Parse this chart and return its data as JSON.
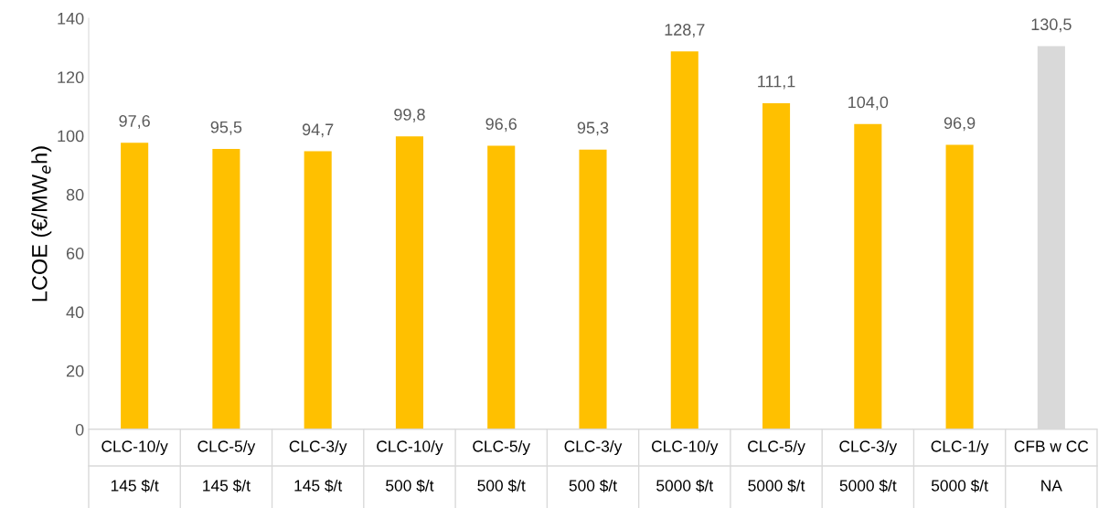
{
  "chart_data": {
    "type": "bar",
    "ylabel": "LCOE (€/MW$_{e}$h)",
    "categories": [
      "CLC-10/y\n145 $/t",
      "CLC-5/y\n145 $/t",
      "CLC-3/y\n145 $/t",
      "CLC-10/y\n500 $/t",
      "CLC-5/y\n500 $/t",
      "CLC-3/y\n500 $/t",
      "CLC-10/y\n5000 $/t",
      "CLC-5/y\n5000 $/t",
      "CLC-3/y\n5000 $/t",
      "CLC-1/y\n5000 $/t",
      "CFB w CC\nNA"
    ],
    "values": [
      97.6,
      95.5,
      94.7,
      99.8,
      96.6,
      95.3,
      128.7,
      111.1,
      104.0,
      96.9,
      130.5
    ],
    "colors": [
      "#ffc000",
      "#ffc000",
      "#ffc000",
      "#ffc000",
      "#ffc000",
      "#ffc000",
      "#ffc000",
      "#ffc000",
      "#ffc000",
      "#ffc000",
      "#d9d9d9"
    ],
    "value_labels": [
      "97,6",
      "95,5",
      "94,7",
      "99,8",
      "96,6",
      "95,3",
      "128,7",
      "111,1",
      "104,0",
      "96,9",
      "130,5"
    ],
    "ylim": [
      0,
      140
    ],
    "yticks": [
      0,
      20,
      40,
      60,
      80,
      100,
      120,
      140
    ],
    "grid": false
  }
}
